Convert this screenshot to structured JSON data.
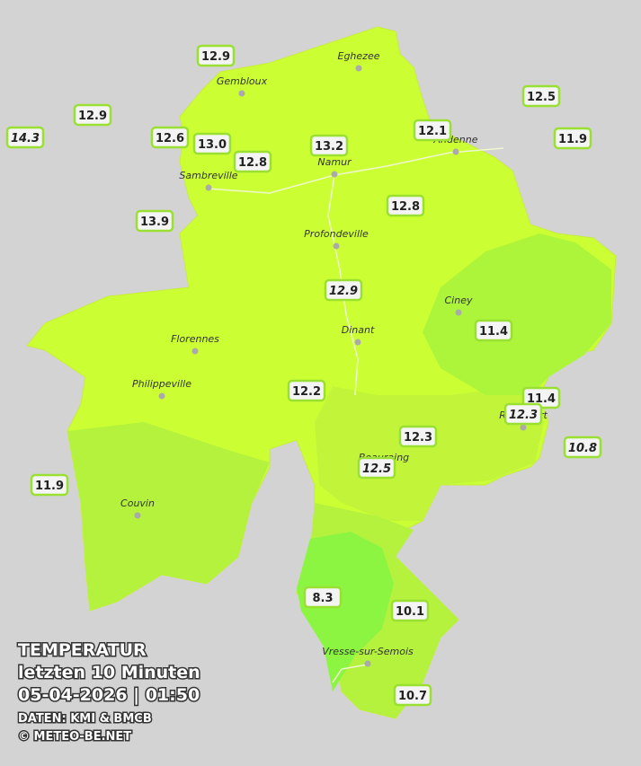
{
  "header": {
    "title": "TEMPERATUR",
    "subtitle": "letzten 10 Minuten",
    "timestamp": "05-04-2026  |  01:50",
    "source": "DATEN: KMI & BMCB",
    "copyright": "© METEO-BE.NET"
  },
  "cities": [
    "Eghezee",
    "Gembloux",
    "Andenne",
    "Namur",
    "Sambreville",
    "Profondeville",
    "Ciney",
    "Dinant",
    "Florennes",
    "Philippeville",
    "Rochefort",
    "Beauraing",
    "Couvin",
    "Vresse-sur-Semois"
  ],
  "stations": [
    "12.9",
    "12.5",
    "12.9",
    "12.1",
    "14.3",
    "12.6",
    "13.0",
    "13.2",
    "11.9",
    "12.8",
    "12.8",
    "13.9",
    "12.9",
    "11.4",
    "12.2",
    "11.4",
    "12.3",
    "12.3",
    "10.8",
    "12.5",
    "11.9",
    "8.3",
    "10.1",
    "10.7"
  ]
}
